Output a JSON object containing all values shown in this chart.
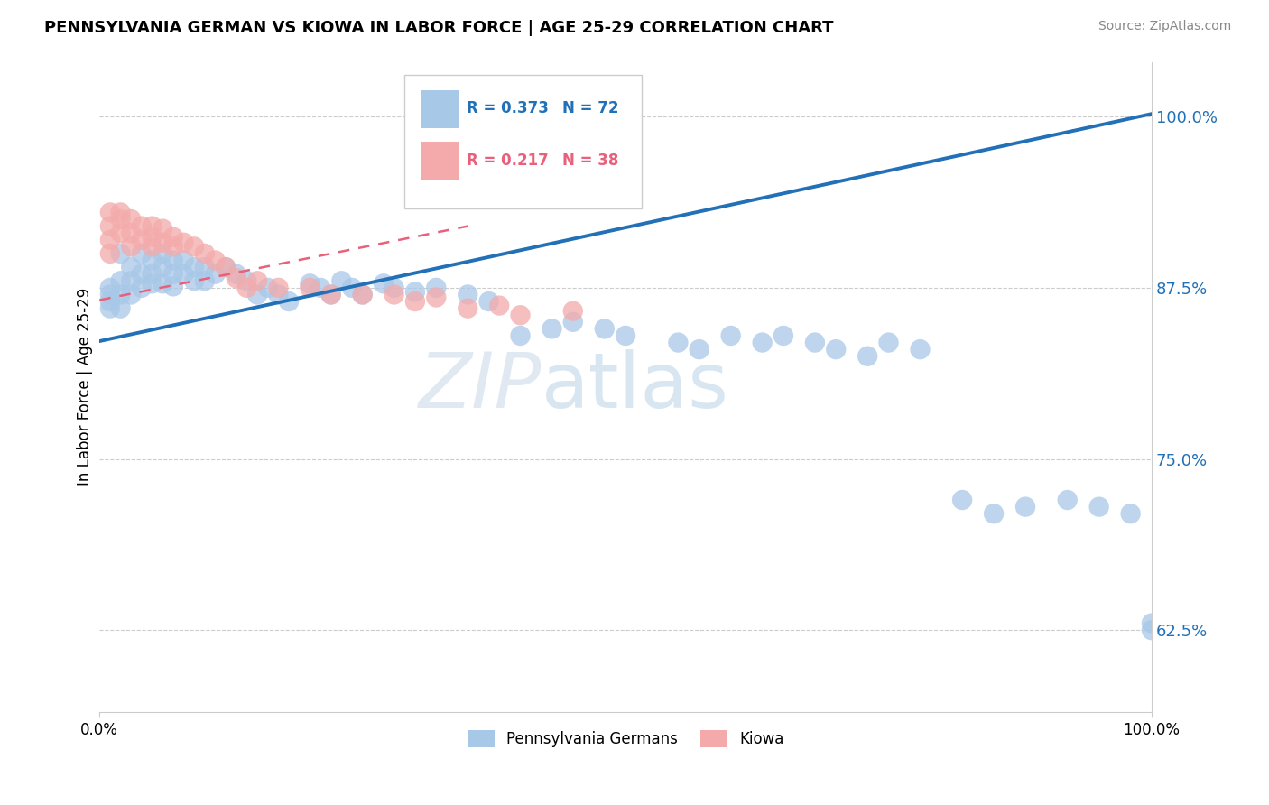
{
  "title": "PENNSYLVANIA GERMAN VS KIOWA IN LABOR FORCE | AGE 25-29 CORRELATION CHART",
  "source": "Source: ZipAtlas.com",
  "ylabel": "In Labor Force | Age 25-29",
  "yticks": [
    0.625,
    0.75,
    0.875,
    1.0
  ],
  "ytick_labels": [
    "62.5%",
    "75.0%",
    "87.5%",
    "100.0%"
  ],
  "xlim": [
    0.0,
    1.0
  ],
  "ylim": [
    0.565,
    1.04
  ],
  "legend_blue_r": "R = 0.373",
  "legend_blue_n": "N = 72",
  "legend_pink_r": "R = 0.217",
  "legend_pink_n": "N = 38",
  "blue_color": "#a8c8e8",
  "pink_color": "#f4aaaa",
  "blue_line_color": "#2170b8",
  "pink_line_color": "#e8607a",
  "legend_label_blue": "Pennsylvania Germans",
  "legend_label_pink": "Kiowa",
  "blue_x": [
    0.01,
    0.01,
    0.01,
    0.01,
    0.02,
    0.02,
    0.02,
    0.02,
    0.03,
    0.03,
    0.03,
    0.04,
    0.04,
    0.04,
    0.05,
    0.05,
    0.05,
    0.06,
    0.06,
    0.06,
    0.07,
    0.07,
    0.07,
    0.08,
    0.08,
    0.09,
    0.09,
    0.1,
    0.1,
    0.11,
    0.12,
    0.13,
    0.14,
    0.15,
    0.16,
    0.17,
    0.18,
    0.2,
    0.21,
    0.22,
    0.23,
    0.24,
    0.25,
    0.27,
    0.28,
    0.3,
    0.32,
    0.35,
    0.37,
    0.4,
    0.43,
    0.45,
    0.48,
    0.5,
    0.55,
    0.57,
    0.6,
    0.63,
    0.65,
    0.68,
    0.7,
    0.73,
    0.75,
    0.78,
    0.82,
    0.85,
    0.88,
    0.92,
    0.95,
    0.98,
    1.0,
    1.0
  ],
  "blue_y": [
    0.875,
    0.87,
    0.865,
    0.86,
    0.9,
    0.88,
    0.87,
    0.86,
    0.89,
    0.88,
    0.87,
    0.9,
    0.885,
    0.875,
    0.895,
    0.885,
    0.878,
    0.9,
    0.89,
    0.878,
    0.895,
    0.885,
    0.876,
    0.895,
    0.885,
    0.89,
    0.88,
    0.89,
    0.88,
    0.885,
    0.89,
    0.885,
    0.88,
    0.87,
    0.875,
    0.87,
    0.865,
    0.878,
    0.875,
    0.87,
    0.88,
    0.875,
    0.87,
    0.878,
    0.875,
    0.872,
    0.875,
    0.87,
    0.865,
    0.84,
    0.845,
    0.85,
    0.845,
    0.84,
    0.835,
    0.83,
    0.84,
    0.835,
    0.84,
    0.835,
    0.83,
    0.825,
    0.835,
    0.83,
    0.72,
    0.71,
    0.715,
    0.72,
    0.715,
    0.71,
    0.63,
    0.625
  ],
  "pink_x": [
    0.01,
    0.01,
    0.01,
    0.01,
    0.02,
    0.02,
    0.02,
    0.03,
    0.03,
    0.03,
    0.04,
    0.04,
    0.05,
    0.05,
    0.05,
    0.06,
    0.06,
    0.07,
    0.07,
    0.08,
    0.09,
    0.1,
    0.11,
    0.12,
    0.13,
    0.14,
    0.15,
    0.17,
    0.2,
    0.22,
    0.25,
    0.28,
    0.3,
    0.32,
    0.35,
    0.38,
    0.4,
    0.45
  ],
  "pink_y": [
    0.93,
    0.92,
    0.91,
    0.9,
    0.93,
    0.925,
    0.915,
    0.925,
    0.915,
    0.905,
    0.92,
    0.91,
    0.92,
    0.912,
    0.905,
    0.918,
    0.908,
    0.912,
    0.905,
    0.908,
    0.905,
    0.9,
    0.895,
    0.89,
    0.882,
    0.875,
    0.88,
    0.875,
    0.875,
    0.87,
    0.87,
    0.87,
    0.865,
    0.868,
    0.86,
    0.862,
    0.855,
    0.858
  ],
  "blue_trend_x0": 0.0,
  "blue_trend_y0": 0.836,
  "blue_trend_x1": 1.0,
  "blue_trend_y1": 1.002,
  "pink_trend_x0": 0.0,
  "pink_trend_y0": 0.866,
  "pink_trend_x1": 0.35,
  "pink_trend_y1": 0.92
}
